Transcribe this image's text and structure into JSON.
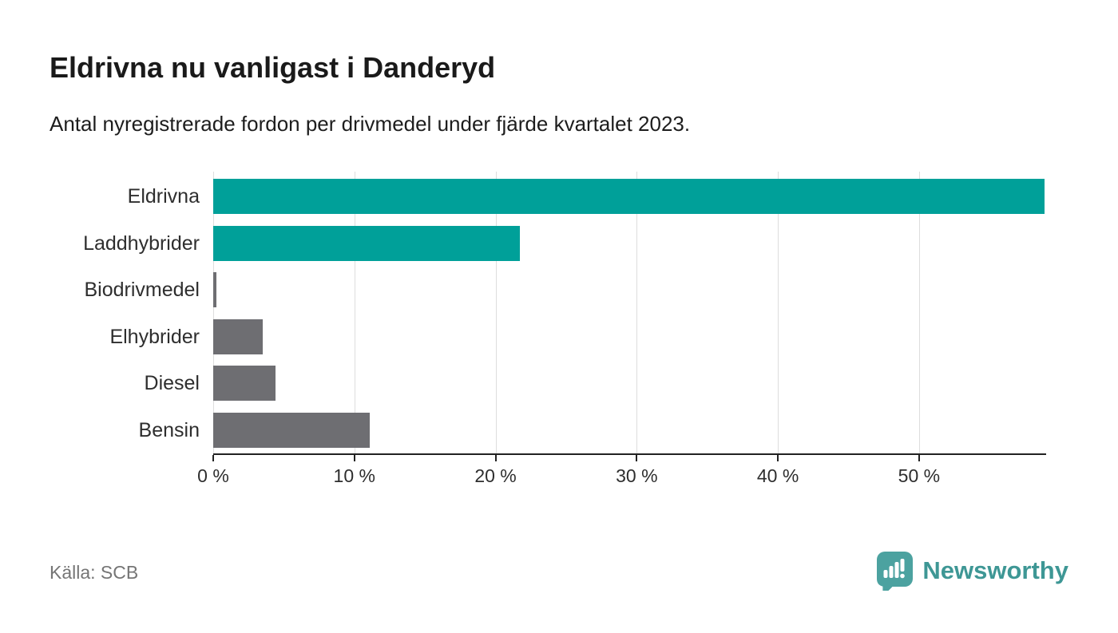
{
  "header": {
    "title": "Eldrivna nu vanligast i Danderyd",
    "subtitle": "Antal nyregistrerade fordon per drivmedel under fjärde kvartalet 2023."
  },
  "chart_data": {
    "type": "bar",
    "orientation": "horizontal",
    "title": "Eldrivna nu vanligast i Danderyd",
    "subtitle": "Antal nyregistrerade fordon per drivmedel under fjärde kvartalet 2023.",
    "categories": [
      "Eldrivna",
      "Laddhybrider",
      "Biodrivmedel",
      "Elhybrider",
      "Diesel",
      "Bensin"
    ],
    "values": [
      58.9,
      21.7,
      0.2,
      3.5,
      4.4,
      11.1
    ],
    "unit": "%",
    "xlabel": "",
    "ylabel": "",
    "xlim": [
      0,
      59
    ],
    "x_ticks": [
      0,
      10,
      20,
      30,
      40,
      50
    ],
    "x_tick_labels": [
      "0 %",
      "10 %",
      "20 %",
      "30 %",
      "40 %",
      "50 %"
    ],
    "bar_colors": [
      "#00a099",
      "#00a099",
      "#6e6e72",
      "#6e6e72",
      "#6e6e72",
      "#6e6e72"
    ],
    "grid": "vertical",
    "legend": "none"
  },
  "footer": {
    "source": "Källa: SCB",
    "brand": "Newsworthy"
  },
  "colors": {
    "accent_teal": "#00a099",
    "bar_gray": "#6e6e72",
    "logo_bubble": "#4ca2a0",
    "brand_text": "#3e9795",
    "gridline": "#dddddd",
    "axis": "#222222",
    "title_text": "#1a1a1a",
    "muted_text": "#757575"
  }
}
